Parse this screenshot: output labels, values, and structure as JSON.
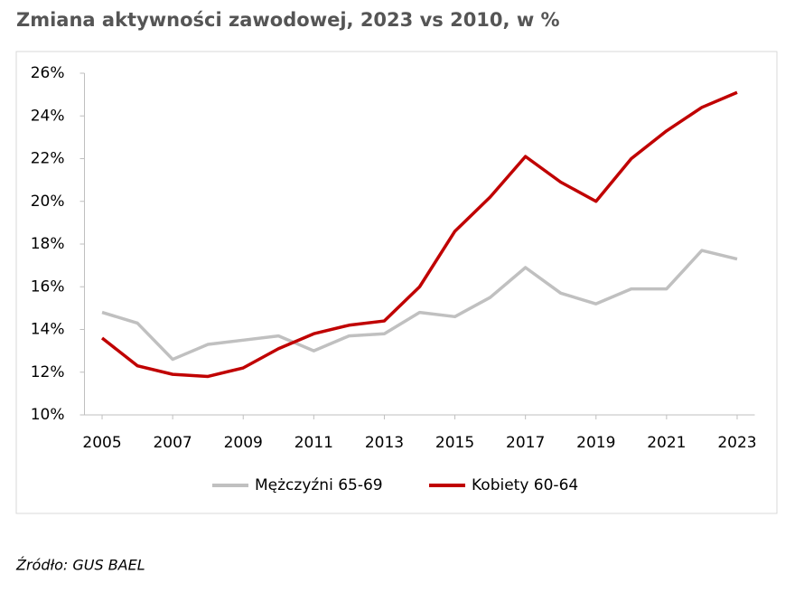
{
  "chart_data": {
    "type": "line",
    "title": "Zmiana aktywności zawodowej, 2023 vs 2010, w %",
    "x": [
      2005,
      2006,
      2007,
      2008,
      2009,
      2010,
      2011,
      2012,
      2013,
      2014,
      2015,
      2016,
      2017,
      2018,
      2019,
      2020,
      2021,
      2022,
      2023
    ],
    "series": [
      {
        "name": "Mężczyźni 65-69",
        "color": "#c0c0c0",
        "values": [
          14.8,
          14.3,
          12.6,
          13.3,
          13.5,
          13.7,
          13.0,
          13.7,
          13.8,
          14.8,
          14.6,
          15.5,
          16.9,
          15.7,
          15.2,
          15.9,
          15.9,
          17.7,
          17.3
        ]
      },
      {
        "name": "Kobiety 60-64",
        "color": "#c00000",
        "values": [
          13.6,
          12.3,
          11.9,
          11.8,
          12.2,
          13.1,
          13.8,
          14.2,
          14.4,
          16.0,
          18.6,
          20.2,
          22.1,
          20.9,
          20.0,
          22.0,
          23.3,
          24.4,
          25.1
        ]
      }
    ],
    "xlim": [
      2004.5,
      2023.5
    ],
    "xticks": [
      2005,
      2007,
      2009,
      2011,
      2013,
      2015,
      2017,
      2019,
      2021,
      2023
    ],
    "ylim": [
      10,
      26
    ],
    "yticks": [
      {
        "value": 10,
        "label": "10%"
      },
      {
        "value": 12,
        "label": "12%"
      },
      {
        "value": 14,
        "label": "14%"
      },
      {
        "value": 16,
        "label": "16%"
      },
      {
        "value": 18,
        "label": "18%"
      },
      {
        "value": 20,
        "label": "20%"
      },
      {
        "value": 22,
        "label": "22%"
      },
      {
        "value": 24,
        "label": "24%"
      },
      {
        "value": 26,
        "label": "26%"
      }
    ],
    "grid": false,
    "legend": "bottom",
    "source": "Źródło: GUS BAEL"
  }
}
